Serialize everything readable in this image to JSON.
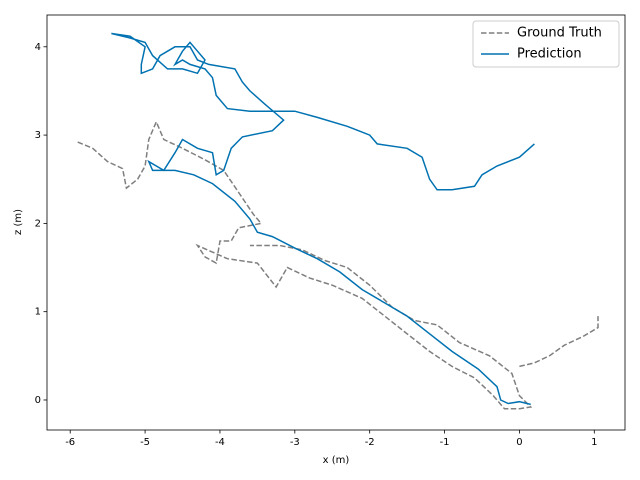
{
  "chart_data": {
    "type": "line",
    "xlabel": "x (m)",
    "ylabel": "z (m)",
    "xlim": [
      -6.31,
      1.41
    ],
    "ylim": [
      -0.34,
      4.36
    ],
    "xticks": [
      -6,
      -5,
      -4,
      -3,
      -2,
      -1,
      0,
      1
    ],
    "yticks": [
      0,
      1,
      2,
      3,
      4
    ],
    "legend": "upper right",
    "series": [
      {
        "name": "Ground Truth",
        "color": "#7f7f7f",
        "linestyle": "dashed",
        "x": [
          -5.9,
          -5.7,
          -5.5,
          -5.3,
          -5.25,
          -5.1,
          -5.0,
          -4.95,
          -4.85,
          -4.75,
          -4.5,
          -4.2,
          -3.95,
          -3.75,
          -3.55,
          -3.45,
          -3.75,
          -3.85,
          -4.0,
          -4.05,
          -4.2,
          -4.3,
          -3.9,
          -3.5,
          -3.25,
          -3.1,
          -2.8,
          -2.5,
          -2.1,
          -1.8,
          -1.5,
          -1.2,
          -0.9,
          -0.6,
          -0.35,
          -0.2,
          0.0,
          0.15,
          0.0,
          -0.1,
          -0.4,
          -0.8,
          -1.1,
          -1.4,
          -1.7,
          -2.0,
          -2.3,
          -2.6,
          -2.9,
          -3.2,
          -3.6,
          null,
          0.0,
          0.2,
          0.4,
          0.6,
          0.85,
          1.05,
          1.05
        ],
        "values": [
          2.92,
          2.85,
          2.7,
          2.62,
          2.4,
          2.5,
          2.65,
          2.95,
          3.15,
          2.95,
          2.85,
          2.72,
          2.6,
          2.35,
          2.1,
          2.0,
          1.95,
          1.8,
          1.8,
          1.55,
          1.62,
          1.75,
          1.6,
          1.55,
          1.28,
          1.5,
          1.38,
          1.3,
          1.15,
          0.95,
          0.75,
          0.55,
          0.38,
          0.25,
          0.05,
          -0.1,
          -0.1,
          -0.08,
          0.05,
          0.3,
          0.5,
          0.65,
          0.85,
          0.9,
          1.05,
          1.3,
          1.5,
          1.58,
          1.7,
          1.75,
          1.75,
          null,
          0.38,
          0.42,
          0.5,
          0.62,
          0.72,
          0.82,
          0.95
        ]
      },
      {
        "name": "Prediction",
        "color": "#0072b2",
        "linestyle": "solid",
        "x": [
          0.2,
          0.0,
          -0.3,
          -0.5,
          -0.6,
          -0.9,
          -1.1,
          -1.2,
          -1.3,
          -1.5,
          -1.9,
          -2.0,
          -2.3,
          -2.7,
          -3.0,
          -3.3,
          -3.6,
          -3.9,
          -4.05,
          -4.1,
          -4.2,
          -4.4,
          -4.5,
          -4.6,
          -4.5,
          -4.4,
          -4.3,
          -4.2,
          -4.3,
          -4.5,
          -4.7,
          -4.9,
          -5.0,
          -5.2,
          -5.45,
          -5.2,
          -5.0,
          -5.05,
          -5.05,
          -4.9,
          -4.8,
          -4.6,
          -4.4,
          -4.3,
          -4.15,
          -3.8,
          -3.7,
          -3.6,
          -3.4,
          -3.15,
          -3.3,
          -3.7,
          -3.85,
          -3.95,
          -4.05,
          -4.1,
          -4.3,
          -4.5,
          -4.6,
          -4.75,
          -4.95,
          -4.9,
          -4.6,
          -4.35,
          -4.1,
          -3.8,
          -3.6,
          -3.5,
          -3.3,
          -3.0,
          -2.7,
          -2.4,
          -2.1,
          -1.8,
          -1.5,
          -1.2,
          -0.9,
          -0.55,
          -0.3,
          -0.25,
          -0.15,
          0.0,
          0.15
        ],
        "values": [
          2.9,
          2.75,
          2.65,
          2.55,
          2.42,
          2.38,
          2.38,
          2.5,
          2.75,
          2.85,
          2.9,
          3.0,
          3.1,
          3.2,
          3.27,
          3.27,
          3.27,
          3.3,
          3.45,
          3.65,
          3.75,
          3.8,
          3.85,
          3.8,
          3.95,
          4.05,
          3.95,
          3.85,
          3.7,
          3.75,
          3.75,
          3.9,
          4.05,
          4.1,
          4.15,
          4.12,
          4.0,
          3.8,
          3.7,
          3.75,
          3.9,
          4.0,
          4.0,
          3.85,
          3.8,
          3.75,
          3.6,
          3.5,
          3.35,
          3.17,
          3.05,
          2.98,
          2.85,
          2.6,
          2.55,
          2.8,
          2.85,
          2.95,
          2.8,
          2.6,
          2.7,
          2.6,
          2.6,
          2.55,
          2.45,
          2.25,
          2.05,
          1.9,
          1.85,
          1.72,
          1.6,
          1.45,
          1.25,
          1.1,
          0.95,
          0.75,
          0.55,
          0.35,
          0.15,
          0.0,
          -0.04,
          -0.02,
          -0.05
        ]
      }
    ]
  }
}
